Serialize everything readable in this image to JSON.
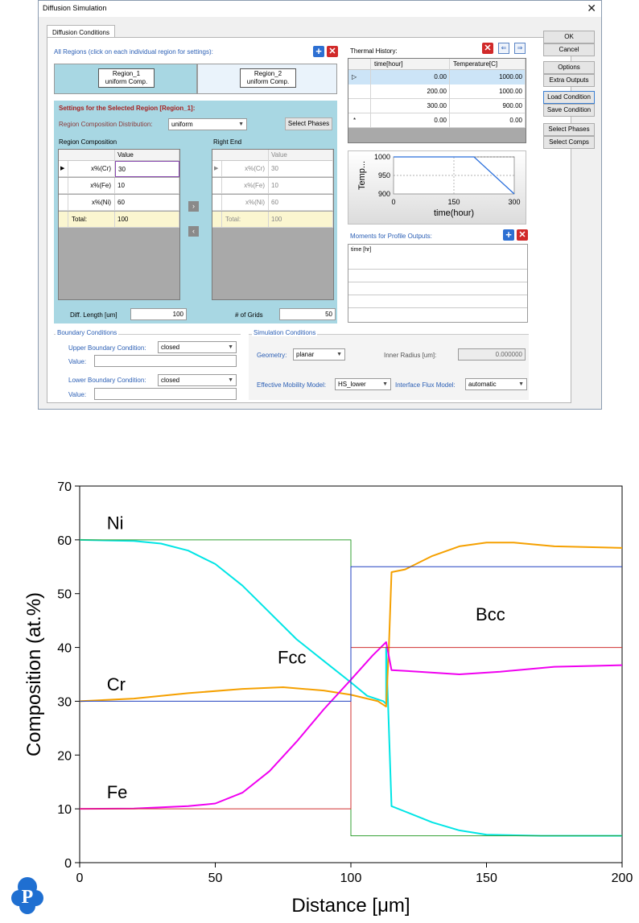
{
  "window": {
    "title": "Diffusion Simulation",
    "close": "✕"
  },
  "tab": {
    "label": "Diffusion Conditions"
  },
  "regions": {
    "header": "All Regions (click on each individual region for settings):",
    "items": [
      {
        "name": "Region_1",
        "sub": "uniform Comp."
      },
      {
        "name": "Region_2",
        "sub": "uniform Comp."
      }
    ]
  },
  "settings": {
    "title": "Settings for the Selected Region [Region_1]:",
    "dist_label": "Region Composition Distribution:",
    "dist_value": "uniform",
    "select_phases": "Select Phases",
    "left_title": "Region Composition",
    "right_title": "Right End",
    "value_header": "Value",
    "left_rows": [
      {
        "label": "x%(Cr)",
        "value": "30"
      },
      {
        "label": "x%(Fe)",
        "value": "10"
      },
      {
        "label": "x%(Ni)",
        "value": "60"
      },
      {
        "label": "Total:",
        "value": "100"
      }
    ],
    "right_rows": [
      {
        "label": "x%(Cr)",
        "value": "30"
      },
      {
        "label": "x%(Fe)",
        "value": "10"
      },
      {
        "label": "x%(Ni)",
        "value": "60"
      },
      {
        "label": "Total:",
        "value": "100"
      }
    ],
    "diff_length_label": "Diff. Length [um]",
    "diff_length": "100",
    "grids_label": "# of Grids",
    "grids": "50"
  },
  "thermal": {
    "title": "Thermal History:",
    "col_time": "time[hour]",
    "col_temp": "Temperature[C]",
    "rows": [
      {
        "time": "0.00",
        "temp": "1000.00"
      },
      {
        "time": "200.00",
        "temp": "1000.00"
      },
      {
        "time": "300.00",
        "temp": "900.00"
      },
      {
        "time": "0.00",
        "temp": "0.00"
      }
    ],
    "new_row_marker": "*",
    "mini_chart": {
      "ylabel": "Temp...",
      "xlabel": "time(hour)",
      "yticks": [
        "1000",
        "950",
        "900"
      ],
      "xticks": [
        "0",
        "150",
        "300"
      ]
    }
  },
  "moments": {
    "title": "Moments for Profile Outputs:",
    "header": "time [hr]"
  },
  "boundary": {
    "title": "Boundary Conditions",
    "upper_label": "Upper Boundary Condition:",
    "upper_value": "closed",
    "lower_label": "Lower Boundary Condition:",
    "lower_value": "closed",
    "value_label": "Value:"
  },
  "simulation": {
    "title": "Simulation Conditions",
    "geometry_label": "Geometry:",
    "geometry_value": "planar",
    "inner_radius_label": "Inner Radius [um]:",
    "inner_radius": "0.000000",
    "mobility_label": "Effective Mobility Model:",
    "mobility_value": "HS_lower",
    "flux_label": "Interface Flux Model:",
    "flux_value": "automatic"
  },
  "side_buttons": [
    "OK",
    "Cancel",
    "Options",
    "Extra Outputs",
    "Load Condition",
    "Save Condition",
    "Select Phases",
    "Select Comps"
  ],
  "chart_data": {
    "type": "line",
    "xlabel": "Distance [μm]",
    "ylabel": "Composition (at.%)",
    "xlim": [
      0,
      200
    ],
    "ylim": [
      0,
      70
    ],
    "xticks": [
      "0",
      "50",
      "100",
      "150",
      "200"
    ],
    "yticks": [
      "0",
      "10",
      "20",
      "30",
      "40",
      "50",
      "60",
      "70"
    ],
    "annotations": [
      {
        "text": "Ni",
        "x": 10,
        "y": 62
      },
      {
        "text": "Cr",
        "x": 10,
        "y": 32
      },
      {
        "text": "Fe",
        "x": 10,
        "y": 12
      },
      {
        "text": "Fcc",
        "x": 73,
        "y": 37
      },
      {
        "text": "Bcc",
        "x": 146,
        "y": 45
      }
    ],
    "series": [
      {
        "color": "#00e5e5",
        "points": [
          [
            0,
            60
          ],
          [
            20,
            59.8
          ],
          [
            30,
            59.3
          ],
          [
            40,
            58
          ],
          [
            50,
            55.5
          ],
          [
            60,
            51.5
          ],
          [
            70,
            46.5
          ],
          [
            80,
            41.5
          ],
          [
            90,
            37.5
          ],
          [
            100,
            33.5
          ],
          [
            106,
            31
          ],
          [
            112,
            30
          ],
          [
            113,
            29.5
          ],
          [
            113,
            40
          ],
          [
            115,
            10.5
          ],
          [
            120,
            9.5
          ],
          [
            130,
            7.5
          ],
          [
            140,
            6
          ],
          [
            150,
            5.2
          ],
          [
            170,
            5
          ],
          [
            200,
            5
          ]
        ]
      },
      {
        "color": "#f5a000",
        "points": [
          [
            0,
            30
          ],
          [
            20,
            30.5
          ],
          [
            40,
            31.5
          ],
          [
            60,
            32.3
          ],
          [
            75,
            32.6
          ],
          [
            90,
            32
          ],
          [
            100,
            31.2
          ],
          [
            110,
            30
          ],
          [
            113,
            29
          ],
          [
            114,
            40
          ],
          [
            115,
            54
          ],
          [
            120,
            54.5
          ],
          [
            130,
            57
          ],
          [
            140,
            58.8
          ],
          [
            150,
            59.5
          ],
          [
            160,
            59.5
          ],
          [
            175,
            58.8
          ],
          [
            200,
            58.5
          ]
        ]
      },
      {
        "color": "#f000f0",
        "points": [
          [
            0,
            10
          ],
          [
            20,
            10.05
          ],
          [
            40,
            10.5
          ],
          [
            50,
            11
          ],
          [
            60,
            13
          ],
          [
            70,
            17
          ],
          [
            80,
            22.5
          ],
          [
            90,
            28.5
          ],
          [
            100,
            34
          ],
          [
            108,
            38.5
          ],
          [
            113,
            41
          ],
          [
            115,
            35.8
          ],
          [
            125,
            35.5
          ],
          [
            140,
            35
          ],
          [
            155,
            35.5
          ],
          [
            175,
            36.4
          ],
          [
            200,
            36.7
          ]
        ]
      },
      {
        "color": "#33a033",
        "points": [
          [
            0,
            60
          ],
          [
            100,
            60
          ],
          [
            100,
            5
          ],
          [
            200,
            5
          ]
        ]
      },
      {
        "color": "#d03030",
        "points": [
          [
            0,
            10
          ],
          [
            100,
            10
          ],
          [
            100,
            40
          ],
          [
            200,
            40
          ]
        ]
      },
      {
        "color": "#2040c0",
        "points": [
          [
            0,
            30
          ],
          [
            100,
            30
          ],
          [
            100,
            55
          ],
          [
            200,
            55
          ]
        ]
      }
    ]
  },
  "logo": {
    "letter": "P"
  }
}
